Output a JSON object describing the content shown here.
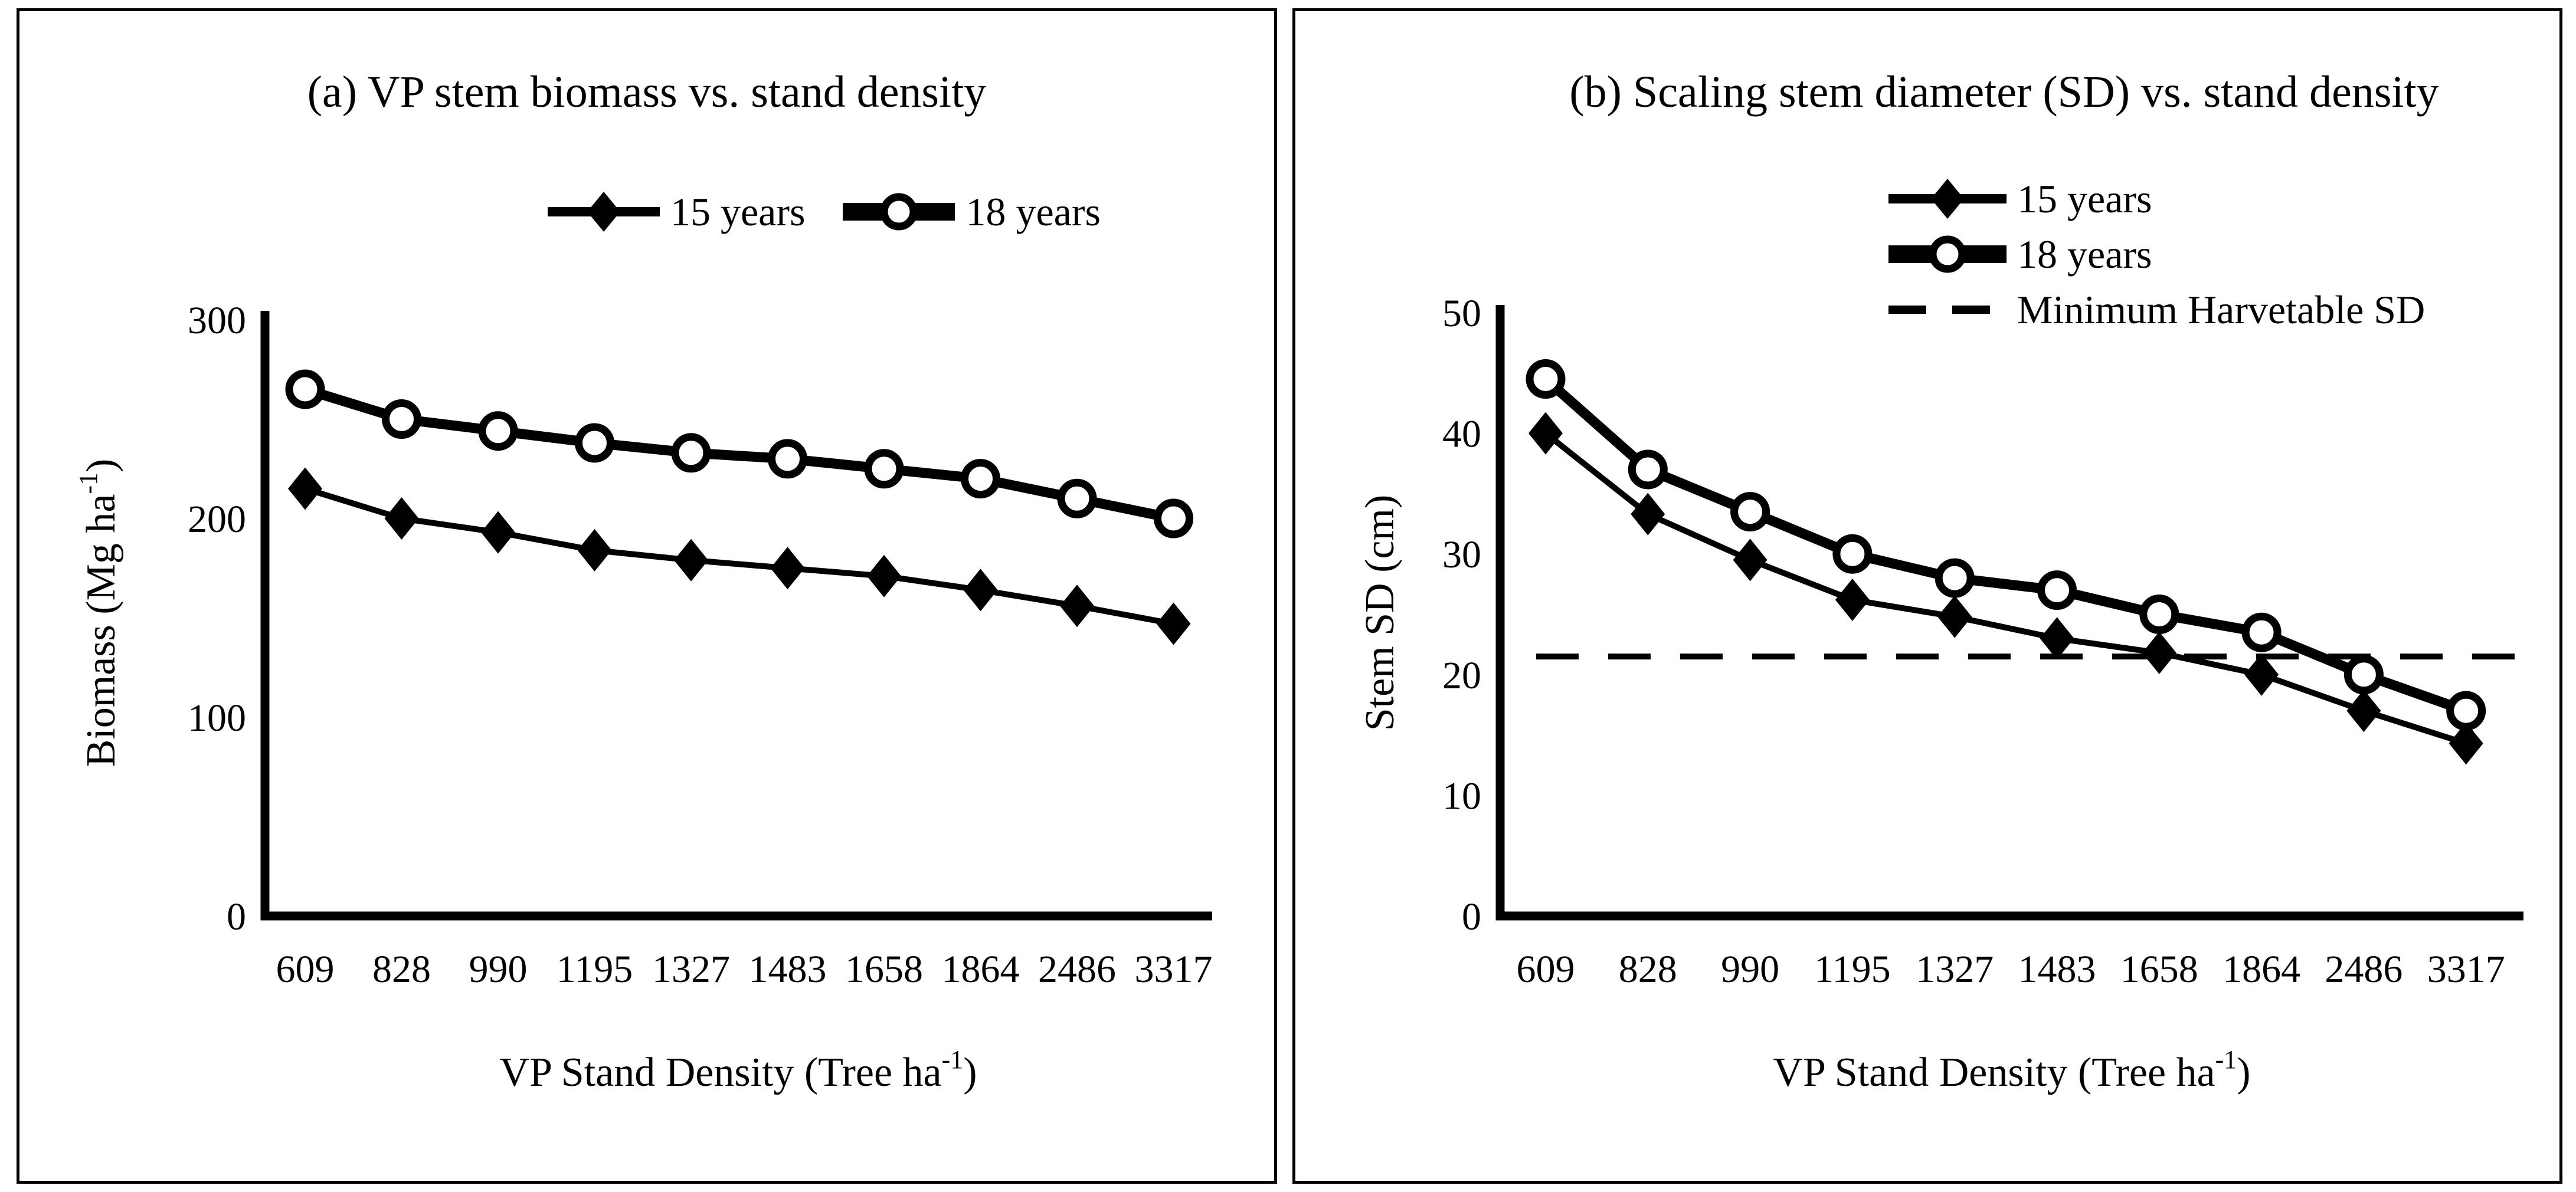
{
  "chart_data": [
    {
      "panel": "a",
      "type": "line",
      "title": "(a) VP stem biomass vs. stand density",
      "xlabel": "VP Stand Density (Tree ha-1)",
      "ylabel": "Biomass (Mg ha-1)",
      "xlabel_parts": {
        "pre": "VP Stand Density (Tree ha",
        "sup": "-1",
        "post": ")"
      },
      "ylabel_parts": {
        "pre": "Biomass (Mg ha",
        "sup": "-1",
        "post": ")"
      },
      "categories": [
        "609",
        "828",
        "990",
        "1195",
        "1327",
        "1483",
        "1658",
        "1864",
        "2486",
        "3317"
      ],
      "series": [
        {
          "name": "15 years",
          "marker": "filled-diamond",
          "line": "thin",
          "values": [
            215,
            200,
            193,
            184,
            179,
            175,
            171,
            164,
            156,
            147
          ]
        },
        {
          "name": "18 years",
          "marker": "open-circle",
          "line": "thick",
          "values": [
            265,
            250,
            244,
            238,
            233,
            230,
            225,
            220,
            210,
            200
          ]
        }
      ],
      "ylim": [
        0,
        300
      ],
      "yticks": [
        0,
        100,
        200,
        300
      ],
      "grid": false,
      "legend_position": "top-center-horizontal"
    },
    {
      "panel": "b",
      "type": "line",
      "title": "(b) Scaling stem diameter (SD) vs. stand density",
      "xlabel": "VP Stand Density (Tree ha-1)",
      "ylabel": "Stem SD (cm)",
      "xlabel_parts": {
        "pre": "VP Stand Density (Tree ha",
        "sup": "-1",
        "post": ")"
      },
      "ylabel_parts": {
        "pre": "Stem SD (cm)",
        "sup": "",
        "post": ""
      },
      "categories": [
        "609",
        "828",
        "990",
        "1195",
        "1327",
        "1483",
        "1658",
        "1864",
        "2486",
        "3317"
      ],
      "series": [
        {
          "name": "15 years",
          "marker": "filled-diamond",
          "line": "thin",
          "values": [
            40,
            33.3,
            29.5,
            26.2,
            24.8,
            23,
            21.8,
            20,
            17,
            14.3
          ]
        },
        {
          "name": "18 years",
          "marker": "open-circle",
          "line": "thick",
          "values": [
            44.5,
            37,
            33.5,
            30,
            28,
            27,
            25,
            23.5,
            20,
            17
          ]
        }
      ],
      "ref_line": {
        "name": "Minimum Harvetable SD",
        "value": 21.5,
        "style": "dashed"
      },
      "ylim": [
        0,
        50
      ],
      "yticks": [
        0,
        10,
        20,
        30,
        40,
        50
      ],
      "grid": false,
      "legend_position": "top-right-vertical"
    }
  ],
  "colors": {
    "foreground": "#000000",
    "background": "#ffffff"
  }
}
